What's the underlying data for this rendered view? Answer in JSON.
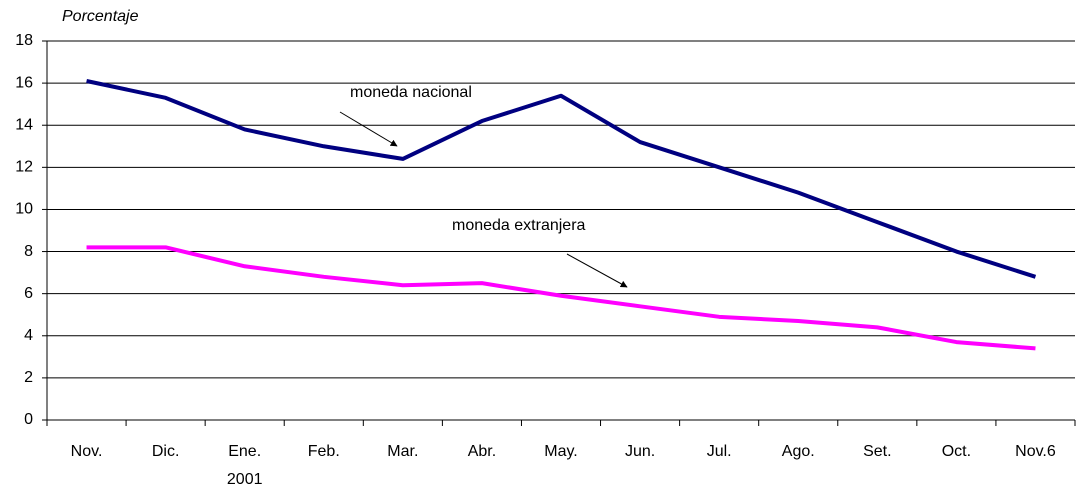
{
  "chart_data": {
    "type": "line",
    "y_label": "Porcentaje",
    "categories": [
      "Nov.",
      "Dic.",
      "Ene.",
      "Feb.",
      "Mar.",
      "Abr.",
      "May.",
      "Jun.",
      "Jul.",
      "Ago.",
      "Set.",
      "Oct.",
      "Nov.6"
    ],
    "category_years": [
      null,
      null,
      "2001",
      null,
      null,
      null,
      null,
      null,
      null,
      null,
      null,
      null,
      null
    ],
    "series": [
      {
        "name": "moneda nacional",
        "color": "#000080",
        "values": [
          16.1,
          15.3,
          13.8,
          13.0,
          12.4,
          14.2,
          15.4,
          13.2,
          12.0,
          10.8,
          9.4,
          8.0,
          6.8
        ]
      },
      {
        "name": "moneda extranjera",
        "color": "#ff00ff",
        "values": [
          8.2,
          8.2,
          7.3,
          6.8,
          6.4,
          6.5,
          5.9,
          5.4,
          4.9,
          4.7,
          4.4,
          3.7,
          3.4
        ]
      }
    ],
    "ylim": [
      0,
      18
    ],
    "yticks": [
      0,
      2,
      4,
      6,
      8,
      10,
      12,
      14,
      16,
      18
    ],
    "grid": true
  }
}
